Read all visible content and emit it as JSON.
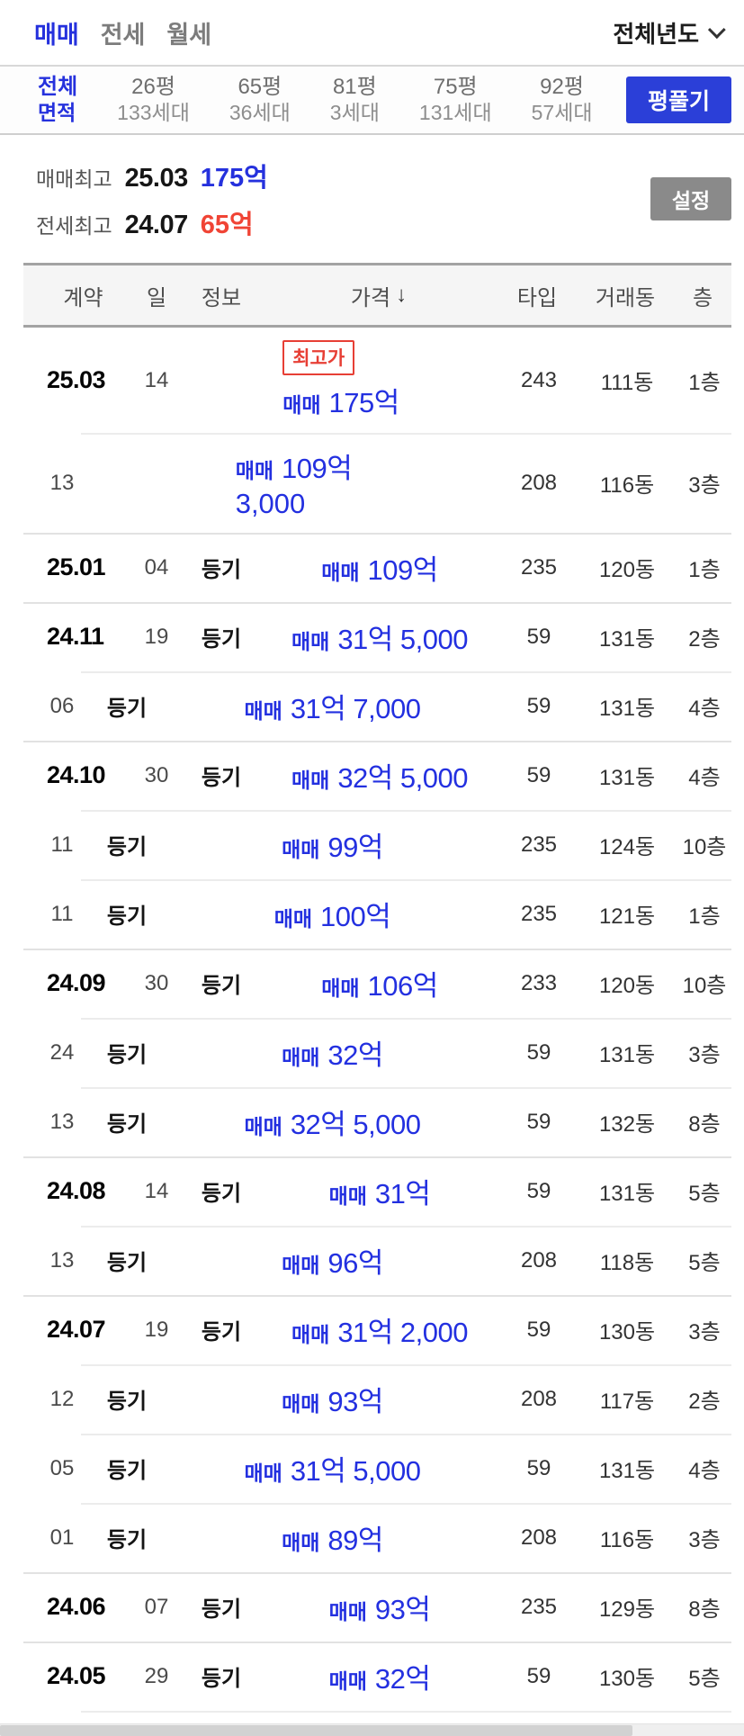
{
  "colors": {
    "blue": "#2531dd",
    "red": "#f04435",
    "button_blue": "#2b3fd8",
    "button_gray": "#8a8a8a"
  },
  "top_bar": {
    "tabs": [
      {
        "label": "매매",
        "active": true
      },
      {
        "label": "전세",
        "active": false
      },
      {
        "label": "월세",
        "active": false
      }
    ],
    "year_dropdown": {
      "label": "전체년도",
      "icon": "chevron-down"
    }
  },
  "area_filter": {
    "items": [
      {
        "line1": "전체",
        "line2": "면적",
        "active": true
      },
      {
        "line1": "26평",
        "line2": "133세대",
        "active": false
      },
      {
        "line1": "65평",
        "line2": "36세대",
        "active": false
      },
      {
        "line1": "81평",
        "line2": "3세대",
        "active": false
      },
      {
        "line1": "75평",
        "line2": "131세대",
        "active": false
      },
      {
        "line1": "92평",
        "line2": "57세대",
        "active": false
      }
    ],
    "expand_button_label": "평풀기"
  },
  "summary": {
    "rows": [
      {
        "label": "매매최고",
        "date": "25.03",
        "price": "175억",
        "color": "#2531dd"
      },
      {
        "label": "전세최고",
        "date": "24.07",
        "price": "65억",
        "color": "#f04435"
      }
    ],
    "settings_button_label": "설정"
  },
  "table": {
    "headers": {
      "contract": "계약",
      "day": "일",
      "info": "정보",
      "price": "가격",
      "type": "타입",
      "dong": "거래동",
      "floor": "층"
    },
    "sort": {
      "column": "가격",
      "direction": "desc",
      "icon": "↓"
    },
    "rows": [
      {
        "month": "25.03",
        "day": "14",
        "info": "",
        "badge": "최고가",
        "price_prefix": "매매",
        "price": "175억",
        "price_sub": "",
        "type": "243",
        "dong": "111동",
        "floor": "1층"
      },
      {
        "month": "",
        "day": "13",
        "info": "",
        "badge": "",
        "price_prefix": "매매",
        "price": "109억",
        "price_sub": "3,000",
        "type": "208",
        "dong": "116동",
        "floor": "3층"
      },
      {
        "month": "25.01",
        "day": "04",
        "info": "등기",
        "badge": "",
        "price_prefix": "매매",
        "price": "109억",
        "price_sub": "",
        "type": "235",
        "dong": "120동",
        "floor": "1층"
      },
      {
        "month": "24.11",
        "day": "19",
        "info": "등기",
        "badge": "",
        "price_prefix": "매매",
        "price": "31억 5,000",
        "price_sub": "",
        "type": "59",
        "dong": "131동",
        "floor": "2층"
      },
      {
        "month": "",
        "day": "06",
        "info": "등기",
        "badge": "",
        "price_prefix": "매매",
        "price": "31억 7,000",
        "price_sub": "",
        "type": "59",
        "dong": "131동",
        "floor": "4층"
      },
      {
        "month": "24.10",
        "day": "30",
        "info": "등기",
        "badge": "",
        "price_prefix": "매매",
        "price": "32억 5,000",
        "price_sub": "",
        "type": "59",
        "dong": "131동",
        "floor": "4층"
      },
      {
        "month": "",
        "day": "11",
        "info": "등기",
        "badge": "",
        "price_prefix": "매매",
        "price": "99억",
        "price_sub": "",
        "type": "235",
        "dong": "124동",
        "floor": "10층"
      },
      {
        "month": "",
        "day": "11",
        "info": "등기",
        "badge": "",
        "price_prefix": "매매",
        "price": "100억",
        "price_sub": "",
        "type": "235",
        "dong": "121동",
        "floor": "1층"
      },
      {
        "month": "24.09",
        "day": "30",
        "info": "등기",
        "badge": "",
        "price_prefix": "매매",
        "price": "106억",
        "price_sub": "",
        "type": "233",
        "dong": "120동",
        "floor": "10층"
      },
      {
        "month": "",
        "day": "24",
        "info": "등기",
        "badge": "",
        "price_prefix": "매매",
        "price": "32억",
        "price_sub": "",
        "type": "59",
        "dong": "131동",
        "floor": "3층"
      },
      {
        "month": "",
        "day": "13",
        "info": "등기",
        "badge": "",
        "price_prefix": "매매",
        "price": "32억 5,000",
        "price_sub": "",
        "type": "59",
        "dong": "132동",
        "floor": "8층"
      },
      {
        "month": "24.08",
        "day": "14",
        "info": "등기",
        "badge": "",
        "price_prefix": "매매",
        "price": "31억",
        "price_sub": "",
        "type": "59",
        "dong": "131동",
        "floor": "5층"
      },
      {
        "month": "",
        "day": "13",
        "info": "등기",
        "badge": "",
        "price_prefix": "매매",
        "price": "96억",
        "price_sub": "",
        "type": "208",
        "dong": "118동",
        "floor": "5층"
      },
      {
        "month": "24.07",
        "day": "19",
        "info": "등기",
        "badge": "",
        "price_prefix": "매매",
        "price": "31억 2,000",
        "price_sub": "",
        "type": "59",
        "dong": "130동",
        "floor": "3층"
      },
      {
        "month": "",
        "day": "12",
        "info": "등기",
        "badge": "",
        "price_prefix": "매매",
        "price": "93억",
        "price_sub": "",
        "type": "208",
        "dong": "117동",
        "floor": "2층"
      },
      {
        "month": "",
        "day": "05",
        "info": "등기",
        "badge": "",
        "price_prefix": "매매",
        "price": "31억 5,000",
        "price_sub": "",
        "type": "59",
        "dong": "131동",
        "floor": "4층"
      },
      {
        "month": "",
        "day": "01",
        "info": "등기",
        "badge": "",
        "price_prefix": "매매",
        "price": "89억",
        "price_sub": "",
        "type": "208",
        "dong": "116동",
        "floor": "3층"
      },
      {
        "month": "24.06",
        "day": "07",
        "info": "등기",
        "badge": "",
        "price_prefix": "매매",
        "price": "93억",
        "price_sub": "",
        "type": "235",
        "dong": "129동",
        "floor": "8층"
      },
      {
        "month": "24.05",
        "day": "29",
        "info": "등기",
        "badge": "",
        "price_prefix": "매매",
        "price": "32억",
        "price_sub": "",
        "type": "59",
        "dong": "130동",
        "floor": "5층"
      }
    ]
  }
}
